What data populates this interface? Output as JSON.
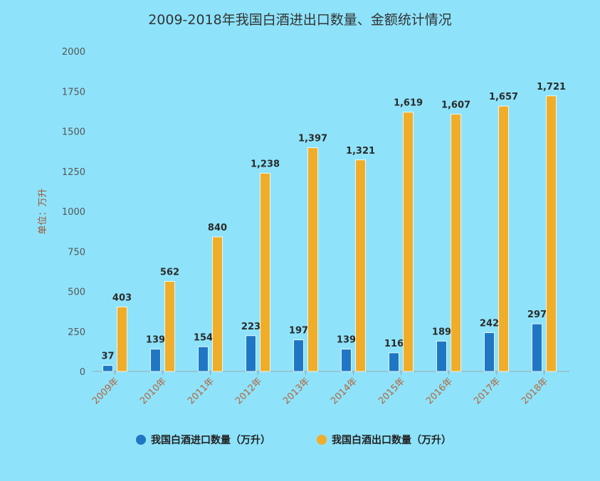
{
  "chart_data": {
    "type": "bar",
    "title": "2009-2018年我国白酒进出口数量、金额统计情况",
    "ylabel": "单位：万升",
    "xlabel": "",
    "categories": [
      "2009年",
      "2010年",
      "2011年",
      "2012年",
      "2013年",
      "2014年",
      "2015年",
      "2016年",
      "2017年",
      "2018年"
    ],
    "series": [
      {
        "name": "我国白酒进口数量（万升）",
        "color": "#1f77c4",
        "values": [
          37,
          139,
          154,
          223,
          197,
          139,
          116,
          189,
          242,
          297
        ],
        "labels": [
          "37",
          "139",
          "154",
          "223",
          "197",
          "139",
          "116",
          "189",
          "242",
          "297"
        ]
      },
      {
        "name": "我国白酒出口数量（万升）",
        "color": "#f0ad2a",
        "values": [
          403,
          562,
          840,
          1238,
          1397,
          1321,
          1619,
          1607,
          1657,
          1721
        ],
        "labels": [
          "403",
          "562",
          "840",
          "1,238",
          "1,397",
          "1,321",
          "1,619",
          "1,607",
          "1,657",
          "1,721"
        ]
      }
    ],
    "ylim": [
      0,
      2000
    ],
    "yticks": [
      0,
      250,
      500,
      750,
      1000,
      1250,
      1500,
      1750,
      2000
    ],
    "grid": false,
    "legend_position": "bottom"
  }
}
